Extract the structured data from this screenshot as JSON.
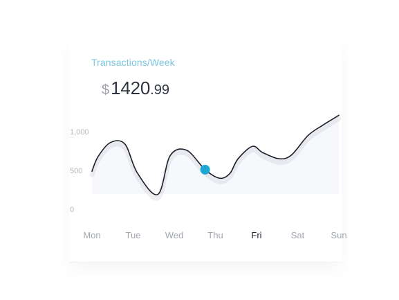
{
  "header": {
    "title": "Transactions/Week",
    "amount_currency": "$",
    "amount_whole": "1420",
    "amount_dot": ".",
    "amount_cents": "99"
  },
  "colors": {
    "title": "#7ac6e2",
    "line": "#1c1f2a",
    "area": "#f7f8fc",
    "marker": "#1ea7d3",
    "active_day": "#1f2530",
    "inactive_day": "#a1a5ad"
  },
  "chart_data": {
    "type": "line",
    "title": "",
    "xlabel": "",
    "ylabel": "",
    "categories": [
      "Mon",
      "Tue",
      "Wed",
      "Thu",
      "Fri",
      "Sat",
      "Sun"
    ],
    "active_category": "Fri",
    "y_ticks": [
      {
        "value": 0,
        "label": "0"
      },
      {
        "value": 500,
        "label": "500"
      },
      {
        "value": 1000,
        "label": "1,000"
      }
    ],
    "ylim": [
      0,
      1000
    ],
    "x": [
      0,
      0.15,
      0.45,
      0.8,
      1.1,
      1.6,
      1.9,
      2.3,
      2.75,
      3.1,
      3.35,
      3.55,
      3.9,
      4.15,
      4.55,
      4.85,
      5.25,
      5.6,
      6.0
    ],
    "values": [
      490,
      680,
      860,
      840,
      470,
      190,
      690,
      760,
      510,
      400,
      460,
      650,
      810,
      730,
      650,
      700,
      950,
      1080,
      1210
    ],
    "highlight_point": {
      "x": 2.75,
      "y": 510
    },
    "grid": false,
    "legend": "none"
  }
}
